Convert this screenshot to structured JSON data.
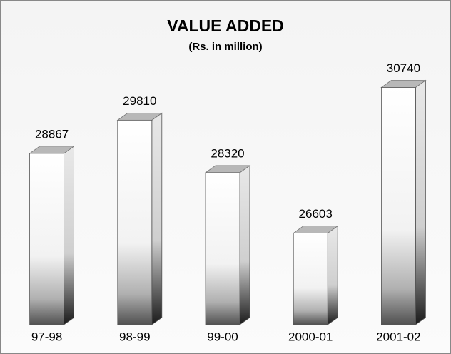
{
  "chart_data": {
    "type": "bar3d",
    "title": "VALUE ADDED",
    "subtitle": "(Rs. in million)",
    "categories": [
      "97-98",
      "98-99",
      "99-00",
      "2000-01",
      "2001-02"
    ],
    "values": [
      28867,
      29810,
      28320,
      26603,
      30740
    ],
    "ylim": [
      24000,
      31500
    ]
  }
}
